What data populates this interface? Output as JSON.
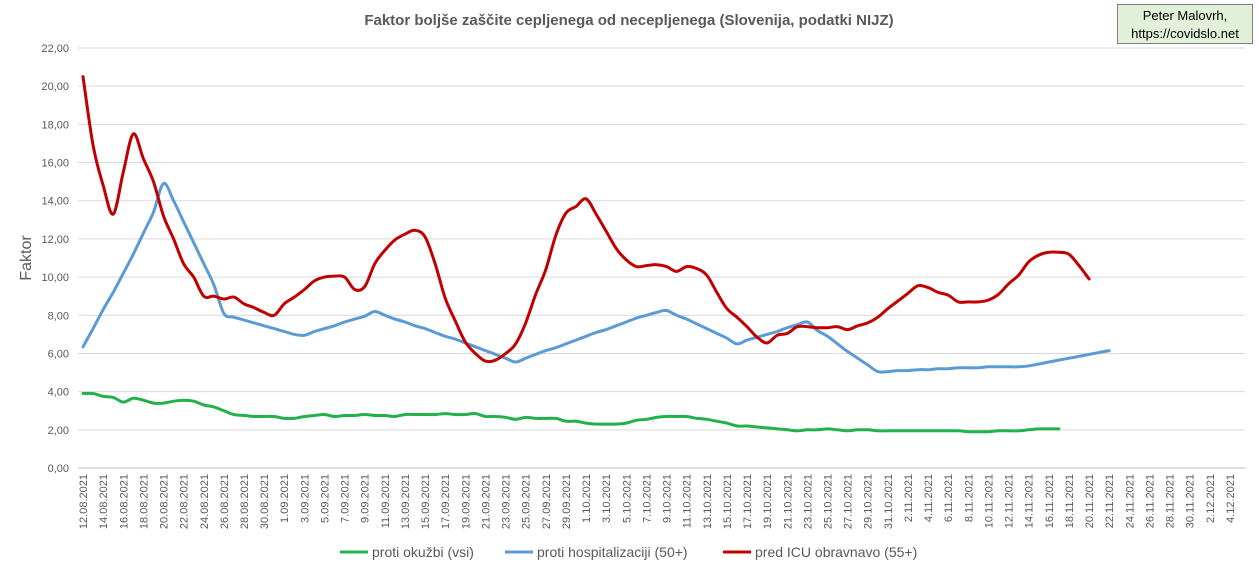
{
  "chart_data": {
    "type": "line",
    "title": "Faktor boljše zaščite cepljenega od necepljenega (Slovenija, podatki NIJZ)",
    "xlabel": "",
    "ylabel": "Faktor",
    "ylim": [
      0,
      22
    ],
    "yticks": [
      "0,00",
      "2,00",
      "4,00",
      "6,00",
      "8,00",
      "10,00",
      "12,00",
      "14,00",
      "16,00",
      "18,00",
      "20,00",
      "22,00"
    ],
    "x_tick_labels": [
      "12.08.2021",
      "14.08.2021",
      "16.08.2021",
      "18.08.2021",
      "20.08.2021",
      "22.08.2021",
      "24.08.2021",
      "26.08.2021",
      "28.08.2021",
      "30.08.2021",
      "1.09.2021",
      "3.09.2021",
      "5.09.2021",
      "7.09.2021",
      "9.09.2021",
      "11.09.2021",
      "13.09.2021",
      "15.09.2021",
      "17.09.2021",
      "19.09.2021",
      "21.09.2021",
      "23.09.2021",
      "25.09.2021",
      "27.09.2021",
      "29.09.2021",
      "1.10.2021",
      "3.10.2021",
      "5.10.2021",
      "7.10.2021",
      "9.10.2021",
      "11.10.2021",
      "13.10.2021",
      "15.10.2021",
      "17.10.2021",
      "19.10.2021",
      "21.10.2021",
      "23.10.2021",
      "25.10.2021",
      "27.10.2021",
      "29.10.2021",
      "31.10.2021",
      "2.11.2021",
      "4.11.2021",
      "6.11.2021",
      "8.11.2021",
      "10.11.2021",
      "12.11.2021",
      "14.11.2021",
      "16.11.2021",
      "18.11.2021",
      "20.11.2021",
      "22.11.2021",
      "24.11.2021",
      "26.11.2021",
      "28.11.2021",
      "30.11.2021",
      "2.12.2021",
      "4.12.2021"
    ],
    "x_count": 116,
    "legend_position": "bottom",
    "gridlines": true,
    "series": [
      {
        "name": "proti okužbi (vsi)",
        "color": "#22b14c",
        "start_index": 0,
        "values": [
          3.9,
          3.9,
          3.75,
          3.7,
          3.45,
          3.65,
          3.55,
          3.4,
          3.4,
          3.5,
          3.55,
          3.5,
          3.3,
          3.2,
          3.0,
          2.8,
          2.75,
          2.7,
          2.7,
          2.7,
          2.6,
          2.6,
          2.7,
          2.75,
          2.8,
          2.7,
          2.75,
          2.75,
          2.8,
          2.75,
          2.75,
          2.7,
          2.8,
          2.8,
          2.8,
          2.8,
          2.85,
          2.8,
          2.8,
          2.85,
          2.7,
          2.7,
          2.65,
          2.55,
          2.65,
          2.6,
          2.6,
          2.6,
          2.45,
          2.45,
          2.35,
          2.3,
          2.3,
          2.3,
          2.35,
          2.5,
          2.55,
          2.65,
          2.7,
          2.7,
          2.7,
          2.6,
          2.55,
          2.45,
          2.35,
          2.2,
          2.2,
          2.15,
          2.1,
          2.05,
          2.0,
          1.95,
          2.0,
          2.0,
          2.05,
          2.0,
          1.95,
          2.0,
          2.0,
          1.95,
          1.95,
          1.95,
          1.95,
          1.95,
          1.95,
          1.95,
          1.95,
          1.95,
          1.9,
          1.9,
          1.9,
          1.95,
          1.95,
          1.95,
          2.0,
          2.05,
          2.05,
          2.05
        ]
      },
      {
        "name": "proti hospitalizaciji (50+)",
        "color": "#5b9bd5",
        "start_index": 0,
        "values": [
          6.35,
          7.3,
          8.3,
          9.2,
          10.2,
          11.2,
          12.3,
          13.4,
          14.9,
          14.0,
          12.9,
          11.8,
          10.7,
          9.6,
          8.1,
          7.9,
          7.75,
          7.6,
          7.45,
          7.3,
          7.15,
          7.0,
          6.95,
          7.15,
          7.3,
          7.45,
          7.65,
          7.8,
          7.95,
          8.2,
          8.0,
          7.8,
          7.65,
          7.45,
          7.3,
          7.1,
          6.9,
          6.75,
          6.55,
          6.35,
          6.15,
          5.95,
          5.75,
          5.55,
          5.75,
          5.95,
          6.15,
          6.3,
          6.5,
          6.7,
          6.9,
          7.1,
          7.25,
          7.45,
          7.65,
          7.85,
          8.0,
          8.15,
          8.25,
          8.0,
          7.8,
          7.55,
          7.3,
          7.05,
          6.8,
          6.5,
          6.7,
          6.85,
          7.0,
          7.15,
          7.35,
          7.5,
          7.65,
          7.2,
          6.9,
          6.5,
          6.1,
          5.75,
          5.4,
          5.05,
          5.05,
          5.1,
          5.1,
          5.15,
          5.15,
          5.2,
          5.2,
          5.25,
          5.25,
          5.25,
          5.3,
          5.3,
          5.3,
          5.3,
          5.35,
          5.45,
          5.55,
          5.65,
          5.75,
          5.85,
          5.95,
          6.05,
          6.15
        ]
      },
      {
        "name": "pred ICU obravnavo (55+)",
        "color": "#c00000",
        "start_index": 0,
        "values": [
          20.5,
          16.9,
          14.8,
          13.3,
          15.5,
          17.5,
          16.2,
          15.0,
          13.2,
          12.0,
          10.7,
          10.0,
          9.0,
          9.0,
          8.85,
          8.95,
          8.6,
          8.4,
          8.15,
          8.0,
          8.6,
          8.95,
          9.35,
          9.8,
          10.0,
          10.05,
          10.0,
          9.35,
          9.5,
          10.7,
          11.4,
          11.95,
          12.25,
          12.45,
          12.1,
          10.7,
          8.9,
          7.7,
          6.6,
          6.0,
          5.6,
          5.65,
          6.0,
          6.5,
          7.6,
          9.1,
          10.4,
          12.2,
          13.35,
          13.7,
          14.1,
          13.3,
          12.4,
          11.5,
          10.9,
          10.55,
          10.6,
          10.65,
          10.55,
          10.3,
          10.55,
          10.45,
          10.1,
          9.2,
          8.35,
          7.9,
          7.4,
          6.85,
          6.55,
          6.95,
          7.05,
          7.4,
          7.4,
          7.35,
          7.35,
          7.4,
          7.25,
          7.45,
          7.6,
          7.9,
          8.35,
          8.75,
          9.15,
          9.55,
          9.45,
          9.2,
          9.05,
          8.7,
          8.7,
          8.7,
          8.8,
          9.1,
          9.65,
          10.1,
          10.8,
          11.15,
          11.3,
          11.3,
          11.2,
          10.6,
          9.9
        ]
      }
    ]
  },
  "author": {
    "line1": "Peter Malovrh,",
    "line2": "https://covidslo.net",
    "bg_color": "#e2f0d9"
  }
}
